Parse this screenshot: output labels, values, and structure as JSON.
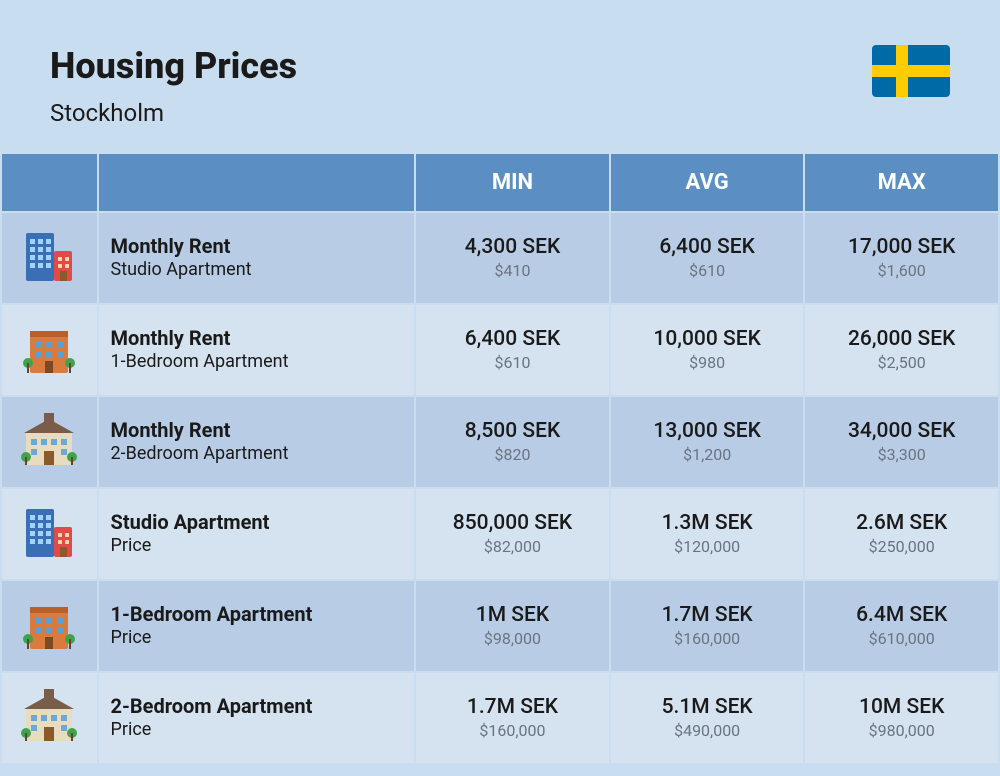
{
  "header": {
    "title": "Housing Prices",
    "subtitle": "Stockholm",
    "flag": {
      "bg": "#006aa7",
      "cross": "#fecc00"
    }
  },
  "colors": {
    "page_bg": "#c9ddf0",
    "header_bg": "#5b8fc3",
    "header_text": "#ffffff",
    "row_a_bg": "#b8cde5",
    "row_b_bg": "#d5e2ef",
    "text": "#1a1a1a",
    "text_muted": "#6b7380"
  },
  "columns": {
    "min": "MIN",
    "avg": "AVG",
    "max": "MAX"
  },
  "rows": [
    {
      "icon": "high-rise",
      "title": "Monthly Rent",
      "sub": "Studio Apartment",
      "min": {
        "sek": "4,300 SEK",
        "usd": "$410"
      },
      "avg": {
        "sek": "6,400 SEK",
        "usd": "$610"
      },
      "max": {
        "sek": "17,000 SEK",
        "usd": "$1,600"
      }
    },
    {
      "icon": "brick",
      "title": "Monthly Rent",
      "sub": "1-Bedroom Apartment",
      "min": {
        "sek": "6,400 SEK",
        "usd": "$610"
      },
      "avg": {
        "sek": "10,000 SEK",
        "usd": "$980"
      },
      "max": {
        "sek": "26,000 SEK",
        "usd": "$2,500"
      }
    },
    {
      "icon": "mansion",
      "title": "Monthly Rent",
      "sub": "2-Bedroom Apartment",
      "min": {
        "sek": "8,500 SEK",
        "usd": "$820"
      },
      "avg": {
        "sek": "13,000 SEK",
        "usd": "$1,200"
      },
      "max": {
        "sek": "34,000 SEK",
        "usd": "$3,300"
      }
    },
    {
      "icon": "high-rise",
      "title": "Studio Apartment",
      "sub": "Price",
      "min": {
        "sek": "850,000 SEK",
        "usd": "$82,000"
      },
      "avg": {
        "sek": "1.3M SEK",
        "usd": "$120,000"
      },
      "max": {
        "sek": "2.6M SEK",
        "usd": "$250,000"
      }
    },
    {
      "icon": "brick",
      "title": "1-Bedroom Apartment",
      "sub": "Price",
      "min": {
        "sek": "1M SEK",
        "usd": "$98,000"
      },
      "avg": {
        "sek": "1.7M SEK",
        "usd": "$160,000"
      },
      "max": {
        "sek": "6.4M SEK",
        "usd": "$610,000"
      }
    },
    {
      "icon": "mansion",
      "title": "2-Bedroom Apartment",
      "sub": "Price",
      "min": {
        "sek": "1.7M SEK",
        "usd": "$160,000"
      },
      "avg": {
        "sek": "5.1M SEK",
        "usd": "$490,000"
      },
      "max": {
        "sek": "10M SEK",
        "usd": "$980,000"
      }
    }
  ]
}
